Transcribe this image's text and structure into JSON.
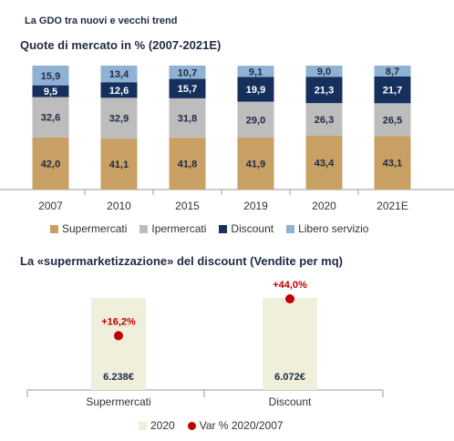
{
  "header": {
    "subtitle": "La GDO tra nuovi e vecchi trend",
    "chart1_title": "Quote di mercato in % (2007-2021E)",
    "chart2_title": "La «supermarketizzazione» del discount (Vendite per mq)"
  },
  "chart_data": [
    {
      "type": "bar",
      "stacked": true,
      "categories": [
        "2007",
        "2010",
        "2015",
        "2019",
        "2020",
        "2021E"
      ],
      "series": [
        {
          "name": "Supermercati",
          "color": "#c8a063",
          "values": [
            42.0,
            41.1,
            41.8,
            41.9,
            43.4,
            43.1
          ],
          "labels": [
            "42,0",
            "41,1",
            "41,8",
            "41,9",
            "43,4",
            "43,1"
          ]
        },
        {
          "name": "Ipermercati",
          "color": "#bdbdbd",
          "values": [
            32.6,
            32.9,
            31.8,
            29.0,
            26.3,
            26.5
          ],
          "labels": [
            "32,6",
            "32,9",
            "31,8",
            "29,0",
            "26,3",
            "26,5"
          ]
        },
        {
          "name": "Discount",
          "color": "#16305e",
          "values": [
            9.5,
            12.6,
            15.7,
            19.9,
            21.3,
            21.7
          ],
          "labels": [
            "9,5",
            "12,6",
            "15,7",
            "19,9",
            "21,3",
            "21,7"
          ]
        },
        {
          "name": "Libero servizio",
          "color": "#8fb2d4",
          "values": [
            15.9,
            13.4,
            10.7,
            9.1,
            9.0,
            8.7
          ],
          "labels": [
            "15,9",
            "13,4",
            "10,7",
            "9,1",
            "9,0",
            "8,7"
          ]
        }
      ],
      "ylim": [
        0,
        100
      ],
      "grid": false,
      "legend": "bottom"
    },
    {
      "type": "bar",
      "categories": [
        "Supermercati",
        "Discount"
      ],
      "series": [
        {
          "name": "2020",
          "color": "#efefdc",
          "values": [
            6238,
            6072
          ],
          "labels": [
            "6.238€",
            "6.072€"
          ]
        },
        {
          "name": "Var % 2020/2007",
          "color": "#c00000",
          "marker": "dot",
          "values": [
            16.2,
            44.0
          ],
          "labels": [
            "+16,2%",
            "+44,0%"
          ]
        }
      ],
      "grid": false,
      "legend": "bottom"
    }
  ]
}
